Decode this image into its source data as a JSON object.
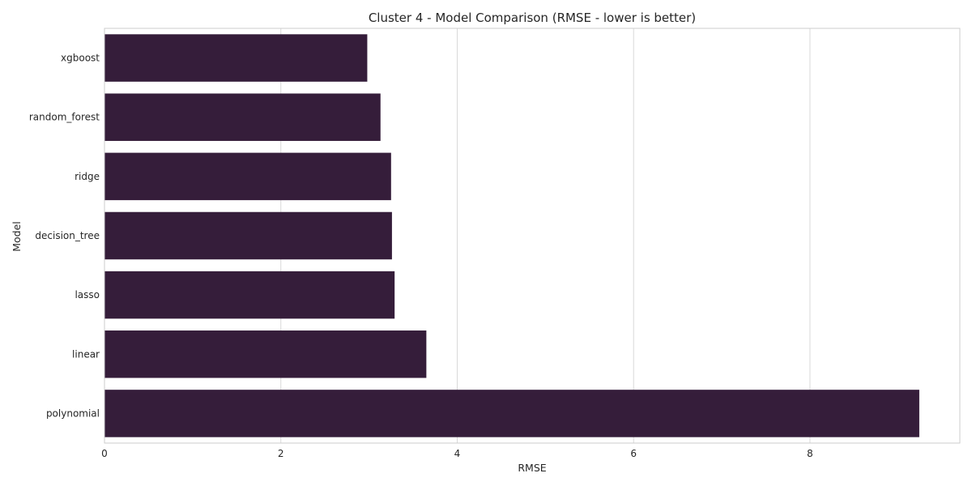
{
  "chart_data": {
    "type": "bar",
    "orientation": "horizontal",
    "title": "Cluster 4 - Model Comparison (RMSE - lower is better)",
    "xlabel": "RMSE",
    "ylabel": "Model",
    "categories": [
      "xgboost",
      "random_forest",
      "ridge",
      "decision_tree",
      "lasso",
      "linear",
      "polynomial"
    ],
    "values": [
      2.98,
      3.13,
      3.25,
      3.26,
      3.29,
      3.65,
      9.24
    ],
    "xlim": [
      0,
      9.7
    ],
    "xticks": [
      0,
      2,
      4,
      6,
      8
    ],
    "grid": true,
    "bar_color": "#351d3a",
    "grid_color": "#d9d9d9"
  }
}
